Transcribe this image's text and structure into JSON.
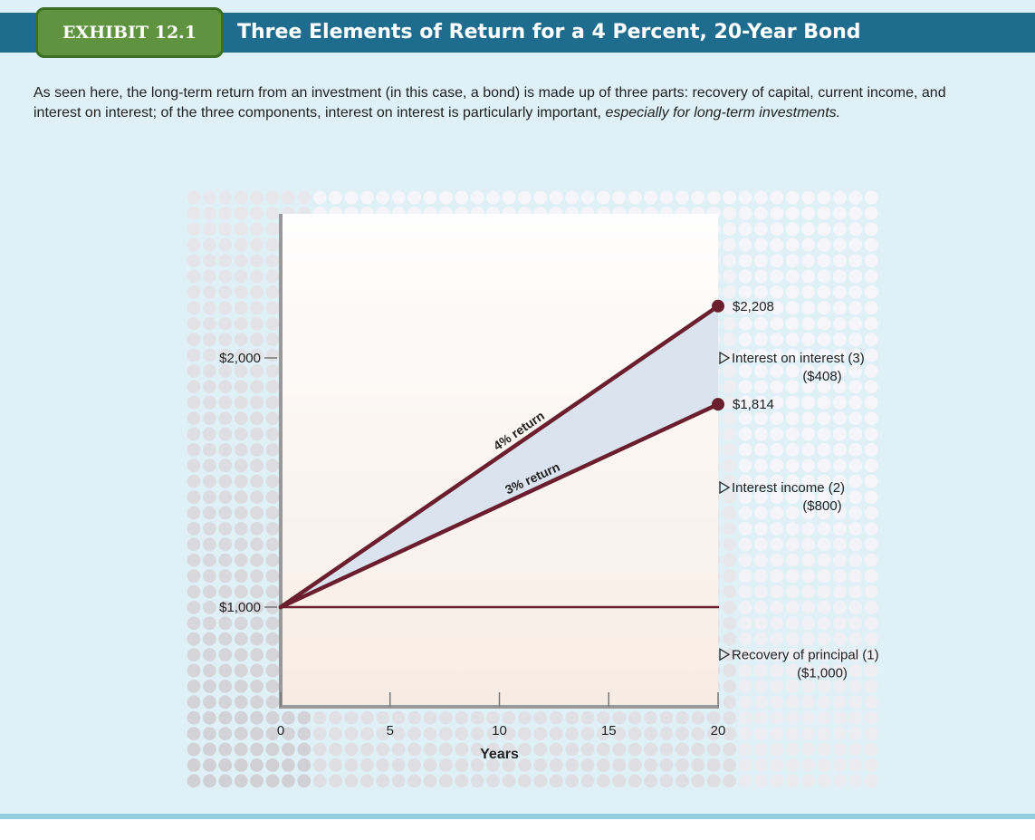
{
  "exhibit": {
    "badge": "EXHIBIT 12.1",
    "title": "Three Elements of Return for a 4 Percent, 20-Year Bond"
  },
  "caption": {
    "text": "As seen here, the long-term return from an investment (in this case, a bond) is made up of three parts: recovery of capital, current income, and interest on interest; of the three components, interest on interest is particularly important,",
    "emphasis": "especially for long-term investments."
  },
  "colors": {
    "header_band": "#1f6d8e",
    "badge": "#5f9340",
    "panel_bg": "#dff1f6",
    "line": "#6b1f2e",
    "axis": "#999999",
    "wedge": "#dbe3ee"
  },
  "chart_data": {
    "type": "line",
    "xlabel": "Years",
    "ylabel": "",
    "xlim": [
      0,
      20
    ],
    "ylim": [
      0,
      2500
    ],
    "x_ticks": [
      0,
      5,
      10,
      15,
      20
    ],
    "y_ticks": [
      {
        "value": 1000,
        "label": "$1,000"
      },
      {
        "value": 2000,
        "label": "$2,000"
      }
    ],
    "series": [
      {
        "name": "4% return",
        "x": [
          0,
          20
        ],
        "y": [
          1000,
          2208
        ]
      },
      {
        "name": "3% return",
        "x": [
          0,
          20
        ],
        "y": [
          1000,
          1814
        ]
      },
      {
        "name": "",
        "x": [
          0,
          20
        ],
        "y": [
          1000,
          1000
        ]
      }
    ],
    "endpoints": [
      {
        "x": 20,
        "y": 2208,
        "label": "$2,208"
      },
      {
        "x": 20,
        "y": 1814,
        "label": "$1,814"
      }
    ],
    "segments": [
      {
        "name": "Interest on interest (3)",
        "amount": "($408)",
        "y": 2000
      },
      {
        "name": "Interest income (2)",
        "amount": "($800)",
        "y": 1480
      },
      {
        "name": "Recovery of principal (1)",
        "amount": "($1,000)",
        "y": 810
      }
    ]
  }
}
